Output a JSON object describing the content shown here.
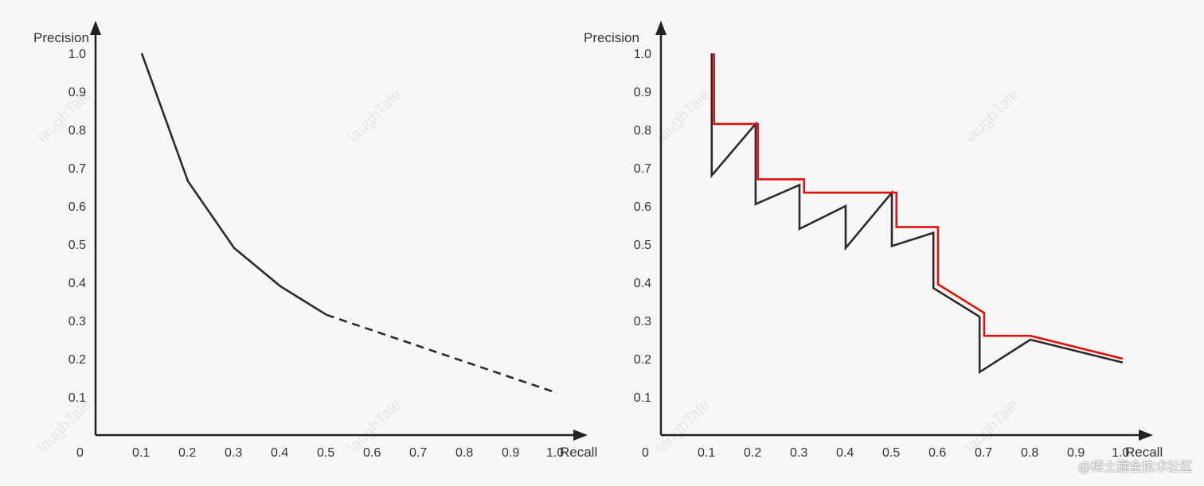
{
  "colors": {
    "axis": "#222222",
    "curve": "#2b2b2b",
    "interpolated": "#e01010",
    "background": "#f7f7f7",
    "watermark": "#e6e6e6"
  },
  "watermark_text": "laughTale",
  "credit": "@稀土掘金技术社区",
  "chart_data": [
    {
      "type": "line",
      "ylabel": "Precision",
      "xlabel": "Recall",
      "origin_label": "0",
      "xlim": [
        0,
        1.05
      ],
      "ylim": [
        0,
        1.1
      ],
      "x_ticks": [
        "0.1",
        "0.2",
        "0.3",
        "0.4",
        "0.5",
        "0.6",
        "0.7",
        "0.8",
        "0.9",
        "1.0"
      ],
      "y_ticks": [
        "0.1",
        "0.2",
        "0.3",
        "0.4",
        "0.5",
        "0.6",
        "0.7",
        "0.8",
        "0.9",
        "1.0"
      ],
      "series": [
        {
          "style": "solid",
          "color_key": "curve",
          "points": [
            [
              0.1,
              1.0
            ],
            [
              0.2,
              0.665
            ],
            [
              0.3,
              0.49
            ],
            [
              0.4,
              0.39
            ],
            [
              0.5,
              0.315
            ]
          ]
        },
        {
          "style": "dashed",
          "color_key": "curve",
          "points": [
            [
              0.5,
              0.315
            ],
            [
              1.0,
              0.11
            ]
          ]
        }
      ]
    },
    {
      "type": "line",
      "ylabel": "Precision",
      "xlabel": "Recall",
      "origin_label": "0",
      "xlim": [
        0,
        1.05
      ],
      "ylim": [
        0,
        1.1
      ],
      "x_ticks": [
        "0.1",
        "0.2",
        "0.3",
        "0.4",
        "0.5",
        "0.6",
        "0.7",
        "0.8",
        "0.9",
        "1.0"
      ],
      "y_ticks": [
        "0.1",
        "0.2",
        "0.3",
        "0.4",
        "0.5",
        "0.6",
        "0.7",
        "0.8",
        "0.9",
        "1.0"
      ],
      "series": [
        {
          "style": "solid",
          "color_key": "curve",
          "points": [
            [
              0.11,
              1.0
            ],
            [
              0.11,
              0.68
            ],
            [
              0.205,
              0.815
            ],
            [
              0.205,
              0.605
            ],
            [
              0.3,
              0.655
            ],
            [
              0.3,
              0.54
            ],
            [
              0.4,
              0.6
            ],
            [
              0.4,
              0.49
            ],
            [
              0.5,
              0.635
            ],
            [
              0.5,
              0.495
            ],
            [
              0.59,
              0.53
            ],
            [
              0.59,
              0.385
            ],
            [
              0.69,
              0.31
            ],
            [
              0.69,
              0.165
            ],
            [
              0.8,
              0.25
            ],
            [
              1.0,
              0.19
            ]
          ]
        },
        {
          "style": "solid",
          "color_key": "interpolated",
          "points": [
            [
              0.115,
              1.0
            ],
            [
              0.115,
              0.815
            ],
            [
              0.21,
              0.815
            ],
            [
              0.21,
              0.67
            ],
            [
              0.31,
              0.67
            ],
            [
              0.31,
              0.635
            ],
            [
              0.51,
              0.635
            ],
            [
              0.51,
              0.545
            ],
            [
              0.6,
              0.545
            ],
            [
              0.6,
              0.395
            ],
            [
              0.7,
              0.32
            ],
            [
              0.7,
              0.26
            ],
            [
              0.8,
              0.26
            ],
            [
              1.0,
              0.2
            ]
          ]
        }
      ]
    }
  ]
}
